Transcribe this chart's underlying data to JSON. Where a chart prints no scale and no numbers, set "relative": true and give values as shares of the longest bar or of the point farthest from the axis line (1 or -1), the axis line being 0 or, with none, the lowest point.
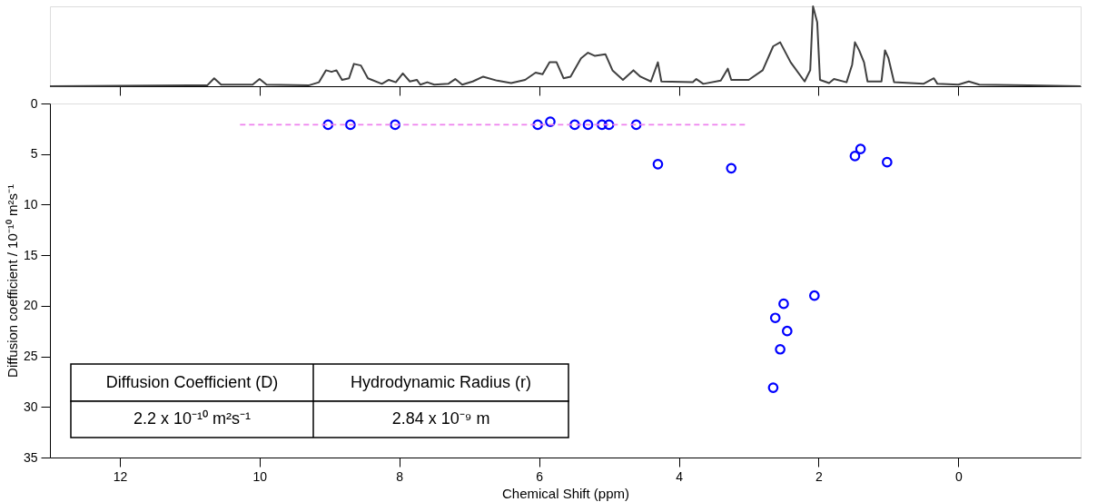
{
  "chart_data": [
    {
      "type": "line",
      "relative": true,
      "xlim": [
        13,
        -1.75
      ],
      "xticks": [
        12,
        10,
        8,
        6,
        4,
        2,
        0
      ],
      "tick_labels": false,
      "grid": false,
      "series": [
        {
          "color": "#404040",
          "x": [
            13.0,
            11.0,
            10.75,
            10.65,
            10.55,
            10.1,
            10.0,
            9.9,
            9.3,
            9.15,
            9.05,
            8.97,
            8.9,
            8.82,
            8.72,
            8.65,
            8.55,
            8.45,
            8.25,
            8.15,
            8.05,
            7.95,
            7.85,
            7.75,
            7.7,
            7.6,
            7.5,
            7.3,
            7.2,
            7.1,
            6.95,
            6.8,
            6.6,
            6.4,
            6.2,
            6.05,
            5.95,
            5.85,
            5.75,
            5.65,
            5.55,
            5.4,
            5.3,
            5.2,
            5.05,
            4.95,
            4.8,
            4.65,
            4.55,
            4.4,
            4.3,
            4.25,
            3.8,
            3.75,
            3.65,
            3.4,
            3.3,
            3.25,
            3.0,
            2.8,
            2.65,
            2.55,
            2.4,
            2.2,
            2.12,
            2.08,
            2.02,
            1.98,
            1.85,
            1.78,
            1.6,
            1.52,
            1.48,
            1.42,
            1.35,
            1.3,
            1.1,
            1.05,
            1.0,
            0.92,
            0.5,
            0.35,
            0.3,
            0.0,
            -0.15,
            -0.3,
            -1.0,
            -1.75
          ],
          "values": [
            0.0,
            0.01,
            0.01,
            0.1,
            0.02,
            0.02,
            0.09,
            0.02,
            0.01,
            0.05,
            0.2,
            0.18,
            0.2,
            0.08,
            0.1,
            0.28,
            0.26,
            0.1,
            0.03,
            0.08,
            0.05,
            0.16,
            0.06,
            0.08,
            0.02,
            0.05,
            0.02,
            0.03,
            0.09,
            0.02,
            0.06,
            0.12,
            0.07,
            0.04,
            0.08,
            0.17,
            0.15,
            0.3,
            0.3,
            0.1,
            0.12,
            0.35,
            0.42,
            0.38,
            0.4,
            0.2,
            0.08,
            0.2,
            0.12,
            0.06,
            0.3,
            0.06,
            0.05,
            0.09,
            0.03,
            0.07,
            0.22,
            0.08,
            0.08,
            0.2,
            0.5,
            0.55,
            0.3,
            0.06,
            0.2,
            1.0,
            0.8,
            0.08,
            0.04,
            0.09,
            0.05,
            0.27,
            0.55,
            0.45,
            0.3,
            0.06,
            0.06,
            0.45,
            0.35,
            0.05,
            0.03,
            0.1,
            0.03,
            0.02,
            0.06,
            0.02,
            0.01,
            0.0
          ]
        }
      ]
    },
    {
      "type": "scatter",
      "xlabel": "Chemical Shift (ppm)",
      "ylabel": "Diffusion coefficient / 10⁻¹⁰ m²s⁻¹",
      "xlim": [
        13,
        -1.75
      ],
      "xticks": [
        12,
        10,
        8,
        6,
        4,
        2,
        0
      ],
      "ylim": [
        35,
        0
      ],
      "yticks": [
        0,
        5,
        10,
        15,
        20,
        25,
        30,
        35
      ],
      "grid": false,
      "series": [
        {
          "type": "scatter",
          "marker": "circle",
          "color": "#0000ff",
          "x": [
            9.02,
            8.7,
            8.06,
            6.02,
            5.84,
            5.49,
            5.3,
            5.1,
            5.0,
            4.61,
            4.3,
            3.25,
            1.48,
            1.4,
            1.02,
            2.06,
            2.5,
            2.62,
            2.45,
            2.55,
            2.65
          ],
          "values": [
            2.1,
            2.1,
            2.1,
            2.1,
            1.8,
            2.1,
            2.1,
            2.1,
            2.1,
            2.1,
            6.0,
            6.4,
            5.2,
            4.5,
            5.8,
            19.0,
            19.8,
            21.2,
            22.5,
            24.3,
            28.1
          ]
        },
        {
          "type": "line",
          "color": "#ee82ee",
          "line_style": "dashed",
          "x": [
            10.28,
            3.03
          ],
          "values": [
            2.1,
            2.1
          ]
        }
      ],
      "annotations": [
        "Diffusion Coefficient (D)",
        "Hydrodynamic Radius (r)",
        "2.2 x 10⁻¹⁰ m²s⁻¹",
        "2.84 x 10⁻⁹ m"
      ]
    }
  ]
}
